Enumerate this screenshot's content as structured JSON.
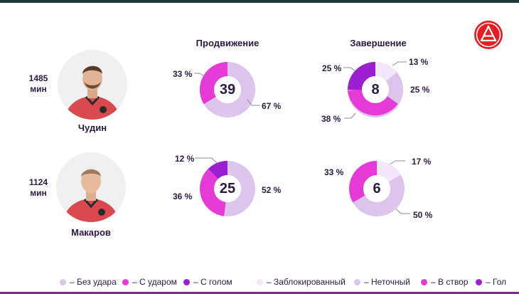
{
  "colors": {
    "light": "#dcc4ec",
    "mid": "#e53ad6",
    "dark": "#9a1fd0",
    "lightest": "#f4e6fb",
    "text": "#2b1a3f",
    "accent_red": "#e31e24"
  },
  "columns": {
    "progress_title": "Продвижение",
    "finish_title": "Завершение"
  },
  "players": [
    {
      "name": "Чудин",
      "minutes_value": "1485",
      "minutes_unit": "мин",
      "progress": {
        "total": "39",
        "labels": [
          "33 %",
          "67 %"
        ]
      },
      "finish": {
        "total": "8",
        "labels": [
          "25 %",
          "13 %",
          "25 %",
          "38 %"
        ]
      }
    },
    {
      "name": "Макаров",
      "minutes_value": "1124",
      "minutes_unit": "мин",
      "progress": {
        "total": "25",
        "labels": [
          "12 %",
          "36 %",
          "52 %"
        ]
      },
      "finish": {
        "total": "6",
        "labels": [
          "17 %",
          "33 %",
          "50 %"
        ]
      }
    }
  ],
  "chart_data": [
    {
      "type": "pie",
      "title": "Продвижение — Чудин",
      "center_value": 39,
      "slices": [
        {
          "name": "Без удара",
          "value": 67,
          "color": "#dcc4ec"
        },
        {
          "name": "С ударом",
          "value": 33,
          "color": "#e53ad6"
        }
      ]
    },
    {
      "type": "pie",
      "title": "Завершение — Чудин",
      "center_value": 8,
      "slices": [
        {
          "name": "Заблокированный",
          "value": 13,
          "color": "#f4e6fb"
        },
        {
          "name": "Неточный",
          "value": 25,
          "color": "#dcc4ec"
        },
        {
          "name": "В створ",
          "value": 38,
          "color": "#e53ad6"
        },
        {
          "name": "Гол",
          "value": 25,
          "color": "#9a1fd0"
        }
      ]
    },
    {
      "type": "pie",
      "title": "Продвижение — Макаров",
      "center_value": 25,
      "slices": [
        {
          "name": "С голом",
          "value": 12,
          "color": "#9a1fd0"
        },
        {
          "name": "Без удара",
          "value": 52,
          "color": "#dcc4ec"
        },
        {
          "name": "С ударом",
          "value": 36,
          "color": "#e53ad6"
        }
      ]
    },
    {
      "type": "pie",
      "title": "Завершение — Макаров",
      "center_value": 6,
      "slices": [
        {
          "name": "Заблокированный",
          "value": 17,
          "color": "#f4e6fb"
        },
        {
          "name": "Неточный",
          "value": 50,
          "color": "#dcc4ec"
        },
        {
          "name": "В створ",
          "value": 33,
          "color": "#e53ad6"
        }
      ]
    }
  ],
  "legend": [
    {
      "label": "– Без удара",
      "color": "#dcc4ec"
    },
    {
      "label": "– С ударом",
      "color": "#e53ad6"
    },
    {
      "label": "– С голом",
      "color": "#9a1fd0"
    },
    {
      "label": "– Заблокированный",
      "color": "#f4e6fb"
    },
    {
      "label": "– Неточный",
      "color": "#dcc4ec"
    },
    {
      "label": "– В створ",
      "color": "#e53ad6"
    },
    {
      "label": "– Гол",
      "color": "#9a1fd0"
    }
  ]
}
